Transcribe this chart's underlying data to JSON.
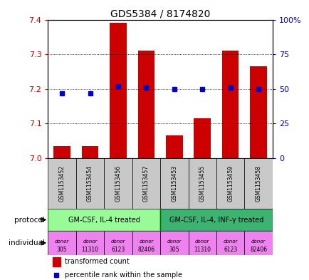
{
  "title": "GDS5384 / 8174820",
  "samples": [
    "GSM1153452",
    "GSM1153454",
    "GSM1153456",
    "GSM1153457",
    "GSM1153453",
    "GSM1153455",
    "GSM1153459",
    "GSM1153458"
  ],
  "bar_values": [
    7.035,
    7.035,
    7.39,
    7.31,
    7.065,
    7.115,
    7.31,
    7.265
  ],
  "percentile_values": [
    47,
    47,
    52,
    51,
    50,
    50,
    51,
    50
  ],
  "ylim_left": [
    7.0,
    7.4
  ],
  "ylim_right": [
    0,
    100
  ],
  "yticks_left": [
    7.0,
    7.1,
    7.2,
    7.3,
    7.4
  ],
  "yticks_right": [
    0,
    25,
    50,
    75,
    100
  ],
  "bar_color": "#cc0000",
  "dot_color": "#0000cc",
  "protocol_labels": [
    "GM-CSF, IL-4 treated",
    "GM-CSF, IL-4, INF-γ treated"
  ],
  "protocol_color_light": "#98fb98",
  "protocol_color_dark": "#3cb371",
  "individual_colors": [
    "#ee82ee",
    "#ee82ee",
    "#ee82ee",
    "#ee82ee",
    "#ee82ee",
    "#ee82ee",
    "#ee82ee",
    "#ee82ee"
  ],
  "individual_labels": [
    "donor\n305",
    "donor\n11310",
    "donor\n6123",
    "donor\n82406",
    "donor\n305",
    "donor\n11310",
    "donor\n6123",
    "donor\n82406"
  ],
  "sample_box_color": "#c8c8c8",
  "background_color": "#ffffff",
  "left_axis_color": "#cc0000",
  "right_axis_color": "#0000cc",
  "bar_width": 0.6
}
